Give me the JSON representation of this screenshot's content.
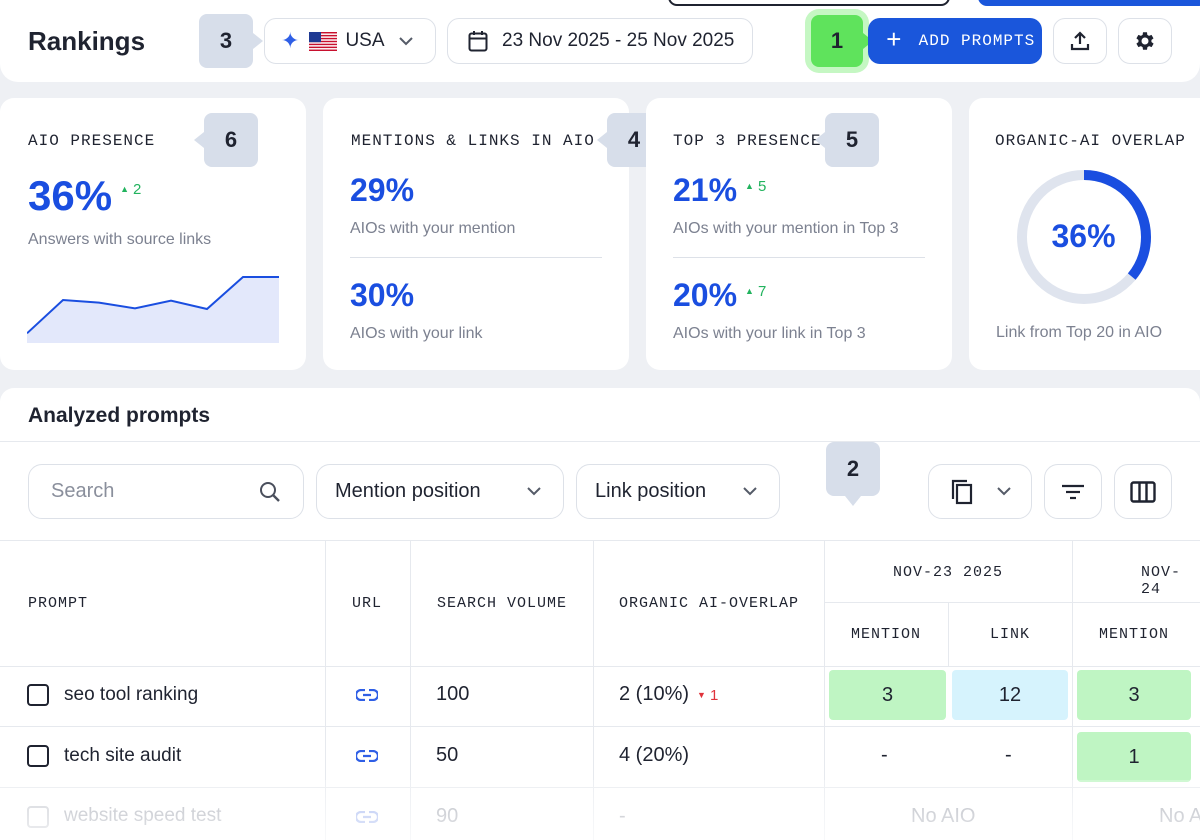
{
  "header": {
    "title": "Rankings",
    "country": "USA",
    "date_range": "23 Nov 2025 - 25 Nov 2025",
    "add_prompts_label": "ADD PROMPTS"
  },
  "callouts": [
    "1",
    "2",
    "3",
    "4",
    "5",
    "6"
  ],
  "cards": {
    "aio_presence": {
      "title": "AIO PRESENCE",
      "value": "36%",
      "delta": "2",
      "caption": "Answers with source links",
      "sparkline": [
        12,
        64,
        60,
        51,
        63,
        50,
        100,
        100
      ]
    },
    "mentions_links": {
      "title": "MENTIONS & LINKS IN AIO",
      "mention_value": "29%",
      "mention_caption": "AIOs with your mention",
      "link_value": "30%",
      "link_caption": "AIOs with your link"
    },
    "top3": {
      "title": "TOP 3 PRESENCE",
      "mention_value": "21%",
      "mention_delta": "5",
      "mention_caption": "AIOs with your mention in Top 3",
      "link_value": "20%",
      "link_delta": "7",
      "link_caption": "AIOs with your link in Top 3"
    },
    "overlap": {
      "title": "ORGANIC-AI OVERLAP",
      "value": "36%",
      "percent": 36,
      "caption": "Link from Top 20 in AIO",
      "accent": "#1a4ee0",
      "track": "#dfe4ee"
    }
  },
  "prompts": {
    "title": "Analyzed prompts",
    "search_placeholder": "Search",
    "mention_filter": "Mention position",
    "link_filter": "Link position",
    "columns": {
      "prompt": "PROMPT",
      "url": "URL",
      "volume": "SEARCH VOLUME",
      "overlap": "ORGANIC AI-OVERLAP",
      "date1": "NOV-23 2025",
      "date2": "NOV-24",
      "mention": "MENTION",
      "link": "LINK"
    },
    "rows": [
      {
        "prompt": "seo tool ranking",
        "volume": "100",
        "overlap": "2 (10%)",
        "overlap_delta": "1",
        "d1_mention": "3",
        "d1_link": "12",
        "d2_mention": "3"
      },
      {
        "prompt": "tech site audit",
        "volume": "50",
        "overlap": "4 (20%)",
        "d1_mention": "-",
        "d1_link": "-",
        "d2_mention": "1"
      },
      {
        "prompt": "website speed test",
        "volume": "90",
        "overlap": "-",
        "d1_status": "No AIO",
        "d2_status": "No A"
      }
    ]
  }
}
